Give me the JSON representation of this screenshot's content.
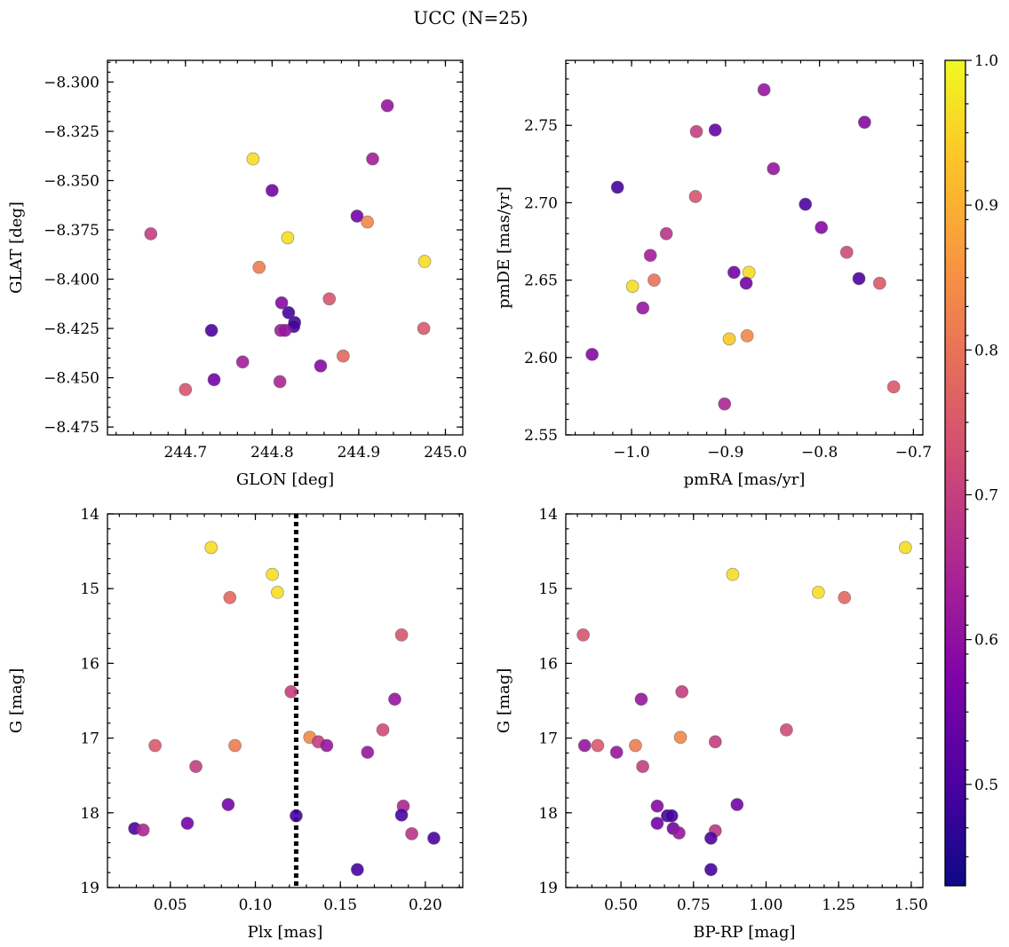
{
  "figure": {
    "title": "UCC (N=25)"
  },
  "colorbar": {
    "ticks": [
      0.5,
      0.6,
      0.7,
      0.8,
      0.9,
      1.0
    ],
    "tick_labels": [
      "0.5",
      "0.6",
      "0.7",
      "0.8",
      "0.9",
      "1.0"
    ],
    "range": [
      0.43,
      1.0
    ],
    "colormap": "plasma"
  },
  "chart_data": [
    {
      "type": "scatter",
      "xlabel": "GLON [deg]",
      "ylabel": "GLAT [deg]",
      "xlim": [
        244.61,
        245.02
      ],
      "ylim": [
        -8.479,
        -8.289
      ],
      "invert_y": false,
      "xticks": [
        244.7,
        244.8,
        244.9,
        245.0
      ],
      "xtick_labels": [
        "244.7",
        "244.8",
        "244.9",
        "245.0"
      ],
      "yticks": [
        -8.3,
        -8.325,
        -8.35,
        -8.375,
        -8.4,
        -8.425,
        -8.45,
        -8.475
      ],
      "ytick_labels": [
        "−8.300",
        "−8.325",
        "−8.350",
        "−8.375",
        "−8.400",
        "−8.425",
        "−8.450",
        "−8.475"
      ],
      "points": [
        {
          "x": 244.933,
          "y": -8.312,
          "c": 0.58
        },
        {
          "x": 244.778,
          "y": -8.339,
          "c": 0.96
        },
        {
          "x": 244.916,
          "y": -8.339,
          "c": 0.6
        },
        {
          "x": 244.8,
          "y": -8.355,
          "c": 0.52
        },
        {
          "x": 244.898,
          "y": -8.368,
          "c": 0.52
        },
        {
          "x": 244.91,
          "y": -8.371,
          "c": 0.82
        },
        {
          "x": 244.66,
          "y": -8.377,
          "c": 0.67
        },
        {
          "x": 244.818,
          "y": -8.379,
          "c": 0.96
        },
        {
          "x": 244.976,
          "y": -8.391,
          "c": 0.96
        },
        {
          "x": 244.785,
          "y": -8.394,
          "c": 0.8
        },
        {
          "x": 244.866,
          "y": -8.41,
          "c": 0.72
        },
        {
          "x": 244.811,
          "y": -8.412,
          "c": 0.55
        },
        {
          "x": 244.819,
          "y": -8.417,
          "c": 0.45
        },
        {
          "x": 244.826,
          "y": -8.422,
          "c": 0.45
        },
        {
          "x": 244.825,
          "y": -8.424,
          "c": 0.45
        },
        {
          "x": 244.73,
          "y": -8.426,
          "c": 0.46
        },
        {
          "x": 244.81,
          "y": -8.426,
          "c": 0.6
        },
        {
          "x": 244.815,
          "y": -8.426,
          "c": 0.58
        },
        {
          "x": 244.975,
          "y": -8.425,
          "c": 0.73
        },
        {
          "x": 244.882,
          "y": -8.439,
          "c": 0.76
        },
        {
          "x": 244.766,
          "y": -8.442,
          "c": 0.6
        },
        {
          "x": 244.856,
          "y": -8.444,
          "c": 0.55
        },
        {
          "x": 244.733,
          "y": -8.451,
          "c": 0.52
        },
        {
          "x": 244.809,
          "y": -8.452,
          "c": 0.62
        },
        {
          "x": 244.7,
          "y": -8.456,
          "c": 0.72
        }
      ]
    },
    {
      "type": "scatter",
      "xlabel": "pmRA [mas/yr]",
      "ylabel": "pmDE [mas/yr]",
      "xlim": [
        -1.07,
        -0.69
      ],
      "ylim": [
        2.55,
        2.792
      ],
      "invert_y": false,
      "xticks": [
        -1.0,
        -0.9,
        -0.8,
        -0.7
      ],
      "xtick_labels": [
        "−1.0",
        "−0.9",
        "−0.8",
        "−0.7"
      ],
      "yticks": [
        2.55,
        2.6,
        2.65,
        2.7,
        2.75
      ],
      "ytick_labels": [
        "2.55",
        "2.60",
        "2.65",
        "2.70",
        "2.75"
      ],
      "points": [
        {
          "x": -0.859,
          "y": 2.773,
          "c": 0.58
        },
        {
          "x": -0.752,
          "y": 2.752,
          "c": 0.55
        },
        {
          "x": -0.911,
          "y": 2.747,
          "c": 0.5
        },
        {
          "x": -0.931,
          "y": 2.746,
          "c": 0.67
        },
        {
          "x": -0.849,
          "y": 2.722,
          "c": 0.58
        },
        {
          "x": -1.015,
          "y": 2.71,
          "c": 0.45
        },
        {
          "x": -0.932,
          "y": 2.704,
          "c": 0.72
        },
        {
          "x": -0.815,
          "y": 2.699,
          "c": 0.46
        },
        {
          "x": -0.798,
          "y": 2.684,
          "c": 0.55
        },
        {
          "x": -0.963,
          "y": 2.68,
          "c": 0.65
        },
        {
          "x": -0.771,
          "y": 2.668,
          "c": 0.7
        },
        {
          "x": -0.98,
          "y": 2.666,
          "c": 0.6
        },
        {
          "x": -0.891,
          "y": 2.655,
          "c": 0.52
        },
        {
          "x": -0.875,
          "y": 2.655,
          "c": 0.96
        },
        {
          "x": -0.758,
          "y": 2.651,
          "c": 0.46
        },
        {
          "x": -0.976,
          "y": 2.65,
          "c": 0.78
        },
        {
          "x": -0.878,
          "y": 2.648,
          "c": 0.52
        },
        {
          "x": -0.736,
          "y": 2.648,
          "c": 0.73
        },
        {
          "x": -0.999,
          "y": 2.646,
          "c": 0.96
        },
        {
          "x": -0.988,
          "y": 2.632,
          "c": 0.58
        },
        {
          "x": -0.877,
          "y": 2.614,
          "c": 0.82
        },
        {
          "x": -0.896,
          "y": 2.612,
          "c": 0.93
        },
        {
          "x": -1.042,
          "y": 2.602,
          "c": 0.55
        },
        {
          "x": -0.721,
          "y": 2.581,
          "c": 0.73
        },
        {
          "x": -0.901,
          "y": 2.57,
          "c": 0.62
        }
      ]
    },
    {
      "type": "scatter",
      "xlabel": "Plx [mas]",
      "ylabel": "G [mag]",
      "xlim": [
        0.013,
        0.222
      ],
      "ylim": [
        14.0,
        19.0
      ],
      "invert_y": true,
      "xticks": [
        0.05,
        0.1,
        0.15,
        0.2
      ],
      "xtick_labels": [
        "0.05",
        "0.10",
        "0.15",
        "0.20"
      ],
      "yticks": [
        14,
        15,
        16,
        17,
        18,
        19
      ],
      "ytick_labels": [
        "14",
        "15",
        "16",
        "17",
        "18",
        "19"
      ],
      "vline": 0.124,
      "points": [
        {
          "x": 0.074,
          "y": 14.45,
          "c": 0.96
        },
        {
          "x": 0.11,
          "y": 14.81,
          "c": 0.96
        },
        {
          "x": 0.113,
          "y": 15.05,
          "c": 0.96
        },
        {
          "x": 0.085,
          "y": 15.12,
          "c": 0.76
        },
        {
          "x": 0.186,
          "y": 15.62,
          "c": 0.72
        },
        {
          "x": 0.121,
          "y": 16.38,
          "c": 0.67
        },
        {
          "x": 0.182,
          "y": 16.48,
          "c": 0.58
        },
        {
          "x": 0.175,
          "y": 16.89,
          "c": 0.7
        },
        {
          "x": 0.132,
          "y": 16.99,
          "c": 0.82
        },
        {
          "x": 0.137,
          "y": 17.05,
          "c": 0.67
        },
        {
          "x": 0.041,
          "y": 17.1,
          "c": 0.73
        },
        {
          "x": 0.088,
          "y": 17.1,
          "c": 0.8
        },
        {
          "x": 0.142,
          "y": 17.1,
          "c": 0.58
        },
        {
          "x": 0.166,
          "y": 17.19,
          "c": 0.58
        },
        {
          "x": 0.065,
          "y": 17.38,
          "c": 0.67
        },
        {
          "x": 0.084,
          "y": 17.89,
          "c": 0.52
        },
        {
          "x": 0.187,
          "y": 17.91,
          "c": 0.62
        },
        {
          "x": 0.124,
          "y": 18.04,
          "c": 0.45
        },
        {
          "x": 0.186,
          "y": 18.03,
          "c": 0.45
        },
        {
          "x": 0.06,
          "y": 18.14,
          "c": 0.52
        },
        {
          "x": 0.029,
          "y": 18.21,
          "c": 0.46
        },
        {
          "x": 0.034,
          "y": 18.23,
          "c": 0.62
        },
        {
          "x": 0.192,
          "y": 18.28,
          "c": 0.65
        },
        {
          "x": 0.205,
          "y": 18.34,
          "c": 0.46
        },
        {
          "x": 0.16,
          "y": 18.76,
          "c": 0.45
        }
      ]
    },
    {
      "type": "scatter",
      "xlabel": "BP-RP [mag]",
      "ylabel": "G [mag]",
      "xlim": [
        0.31,
        1.54
      ],
      "ylim": [
        14.0,
        19.0
      ],
      "invert_y": true,
      "xticks": [
        0.5,
        0.75,
        1.0,
        1.25,
        1.5
      ],
      "xtick_labels": [
        "0.50",
        "0.75",
        "1.00",
        "1.25",
        "1.50"
      ],
      "yticks": [
        14,
        15,
        16,
        17,
        18,
        19
      ],
      "ytick_labels": [
        "14",
        "15",
        "16",
        "17",
        "18",
        "19"
      ],
      "points": [
        {
          "x": 1.48,
          "y": 14.45,
          "c": 0.96
        },
        {
          "x": 0.885,
          "y": 14.81,
          "c": 0.96
        },
        {
          "x": 1.18,
          "y": 15.05,
          "c": 0.96
        },
        {
          "x": 1.27,
          "y": 15.12,
          "c": 0.76
        },
        {
          "x": 0.37,
          "y": 15.62,
          "c": 0.72
        },
        {
          "x": 0.71,
          "y": 16.38,
          "c": 0.67
        },
        {
          "x": 0.57,
          "y": 16.48,
          "c": 0.58
        },
        {
          "x": 1.07,
          "y": 16.89,
          "c": 0.7
        },
        {
          "x": 0.705,
          "y": 16.99,
          "c": 0.82
        },
        {
          "x": 0.825,
          "y": 17.05,
          "c": 0.67
        },
        {
          "x": 0.375,
          "y": 17.1,
          "c": 0.58
        },
        {
          "x": 0.42,
          "y": 17.1,
          "c": 0.73
        },
        {
          "x": 0.55,
          "y": 17.1,
          "c": 0.8
        },
        {
          "x": 0.485,
          "y": 17.19,
          "c": 0.58
        },
        {
          "x": 0.575,
          "y": 17.38,
          "c": 0.67
        },
        {
          "x": 0.625,
          "y": 17.91,
          "c": 0.55
        },
        {
          "x": 0.9,
          "y": 17.89,
          "c": 0.52
        },
        {
          "x": 0.66,
          "y": 18.04,
          "c": 0.45
        },
        {
          "x": 0.675,
          "y": 18.04,
          "c": 0.45
        },
        {
          "x": 0.625,
          "y": 18.14,
          "c": 0.52
        },
        {
          "x": 0.68,
          "y": 18.21,
          "c": 0.52
        },
        {
          "x": 0.7,
          "y": 18.27,
          "c": 0.58
        },
        {
          "x": 0.825,
          "y": 18.24,
          "c": 0.65
        },
        {
          "x": 0.81,
          "y": 18.34,
          "c": 0.46
        },
        {
          "x": 0.81,
          "y": 18.76,
          "c": 0.45
        }
      ]
    }
  ]
}
